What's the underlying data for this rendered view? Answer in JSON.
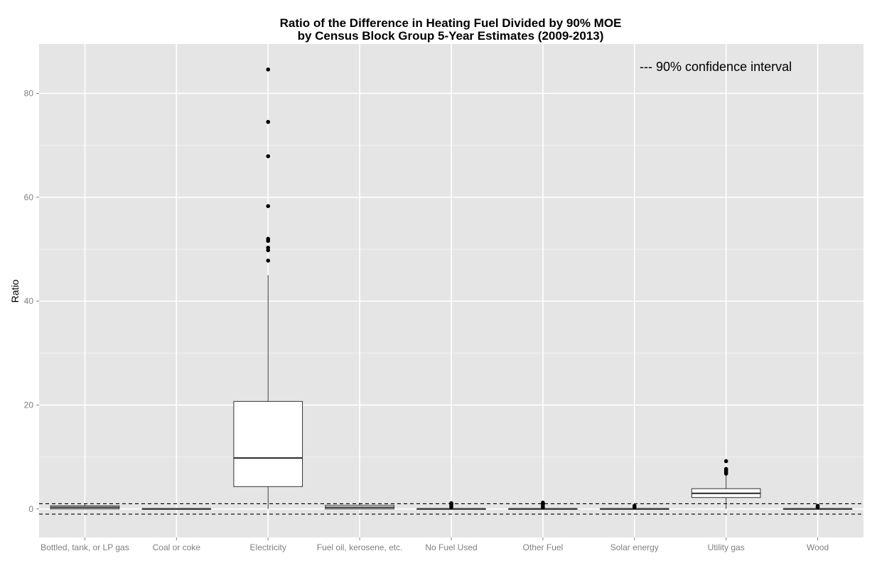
{
  "chart_data": {
    "type": "boxplot",
    "title": "Ratio of the Difference in Heating Fuel Divided by 90% MOE",
    "subtitle": "by Census Block Group 5-Year Estimates (2009-2013)",
    "xlabel": "",
    "ylabel": "Ratio",
    "ylim": [
      -5.5,
      89.5
    ],
    "yticks": [
      0,
      20,
      40,
      60,
      80
    ],
    "grid": true,
    "background": "#e5e5e5",
    "annotation": "--- 90% confidence interval",
    "reference_lines": [
      1,
      -1
    ],
    "categories": [
      "Bottled, tank, or LP gas",
      "Coal or coke",
      "Electricity",
      "Fuel oil, kerosene, etc.",
      "No Fuel Used",
      "Other Fuel",
      "Solar energy",
      "Utility gas",
      "Wood"
    ],
    "boxes": [
      {
        "q1": 0,
        "median": 0.3,
        "q3": 0.6,
        "low": 0,
        "high": 0.9,
        "outliers": []
      },
      {
        "q1": 0,
        "median": 0,
        "q3": 0,
        "low": 0,
        "high": 0,
        "outliers": []
      },
      {
        "q1": 4.3,
        "median": 9.8,
        "q3": 20.7,
        "low": 0,
        "high": 45,
        "outliers": [
          47.8,
          49.8,
          50.3,
          51.6,
          52,
          58.3,
          67.9,
          74.5,
          84.6
        ]
      },
      {
        "q1": 0,
        "median": 0.3,
        "q3": 0.7,
        "low": 0,
        "high": 1.2,
        "outliers": []
      },
      {
        "q1": 0,
        "median": 0,
        "q3": 0,
        "low": 0,
        "high": 0,
        "outliers": [
          0.3,
          0.6,
          0.9,
          1.1
        ]
      },
      {
        "q1": 0,
        "median": 0,
        "q3": 0,
        "low": 0,
        "high": 0,
        "outliers": [
          0.3,
          0.6,
          0.9,
          1.2
        ]
      },
      {
        "q1": 0,
        "median": 0,
        "q3": 0,
        "low": 0,
        "high": 0,
        "outliers": [
          0.3,
          0.6
        ]
      },
      {
        "q1": 2.2,
        "median": 3,
        "q3": 3.9,
        "low": 0,
        "high": 6.5,
        "outliers": [
          6.8,
          7.1,
          7.4,
          7.7,
          9.2
        ]
      },
      {
        "q1": 0,
        "median": 0,
        "q3": 0,
        "low": 0,
        "high": 0,
        "outliers": [
          0.3,
          0.6
        ]
      }
    ]
  }
}
